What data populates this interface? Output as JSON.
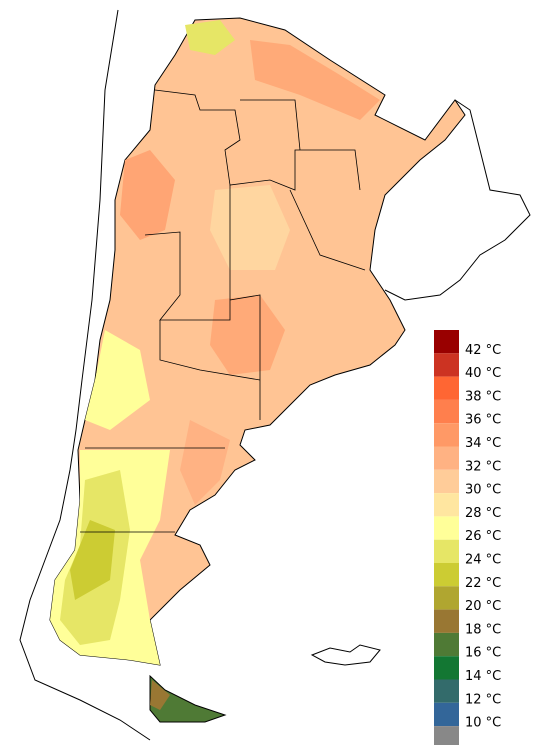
{
  "legend": {
    "labels": [
      "42 °C",
      "40 °C",
      "38 °C",
      "36 °C",
      "34 °C",
      "32 °C",
      "30 °C",
      "28 °C",
      "26 °C",
      "24 °C",
      "22 °C",
      "20 °C",
      "18 °C",
      "16 °C",
      "14 °C",
      "12 °C",
      "10 °C"
    ],
    "colors": [
      "#990000",
      "#cc3322",
      "#ff6633",
      "#ff7f4d",
      "#ff9966",
      "#ffb283",
      "#ffcc99",
      "#ffe6a0",
      "#ffff99",
      "#e6e666",
      "#cccc33",
      "#b0a630",
      "#997733",
      "#4f7a35",
      "#137733",
      "#336b6b",
      "#336699",
      "#888888"
    ]
  }
}
